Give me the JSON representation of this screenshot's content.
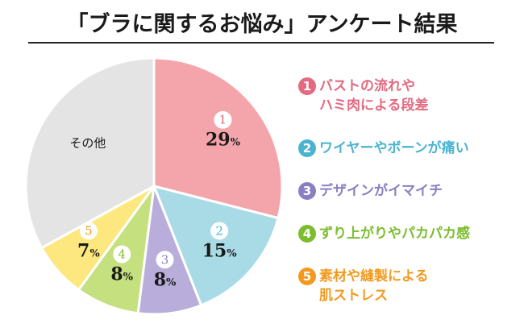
{
  "chart_data": {
    "type": "pie",
    "title": "「ブラに関するお悩み」アンケート結果",
    "slices": [
      {
        "rank": "1",
        "label": "バストの流れや\nハミ肉による段差",
        "value": 29,
        "value_label": "29",
        "unit": "%",
        "color": "#f4a5ab",
        "legend_color": "#e36a80"
      },
      {
        "rank": "2",
        "label": "ワイヤーやボーンが痛い",
        "value": 15,
        "value_label": "15",
        "unit": "%",
        "color": "#a9dbe6",
        "legend_color": "#4ab4d0"
      },
      {
        "rank": "3",
        "label": "デザインがイマイチ",
        "value": 8,
        "value_label": "8",
        "unit": "%",
        "color": "#b9aedb",
        "legend_color": "#8b7fc3"
      },
      {
        "rank": "4",
        "label": "ずり上がりやパカパカ感",
        "value": 8,
        "value_label": "8",
        "unit": "%",
        "color": "#c5e07e",
        "legend_color": "#7cbd2e"
      },
      {
        "rank": "5",
        "label": "素材や縫製による\n肌ストレス",
        "value": 7,
        "value_label": "7",
        "unit": "%",
        "color": "#fde77f",
        "legend_color": "#f39a1e"
      },
      {
        "rank": "",
        "label": "その他",
        "value": 33,
        "value_label": "",
        "unit": "",
        "color": "#e4e4e4",
        "legend_color": ""
      }
    ]
  }
}
